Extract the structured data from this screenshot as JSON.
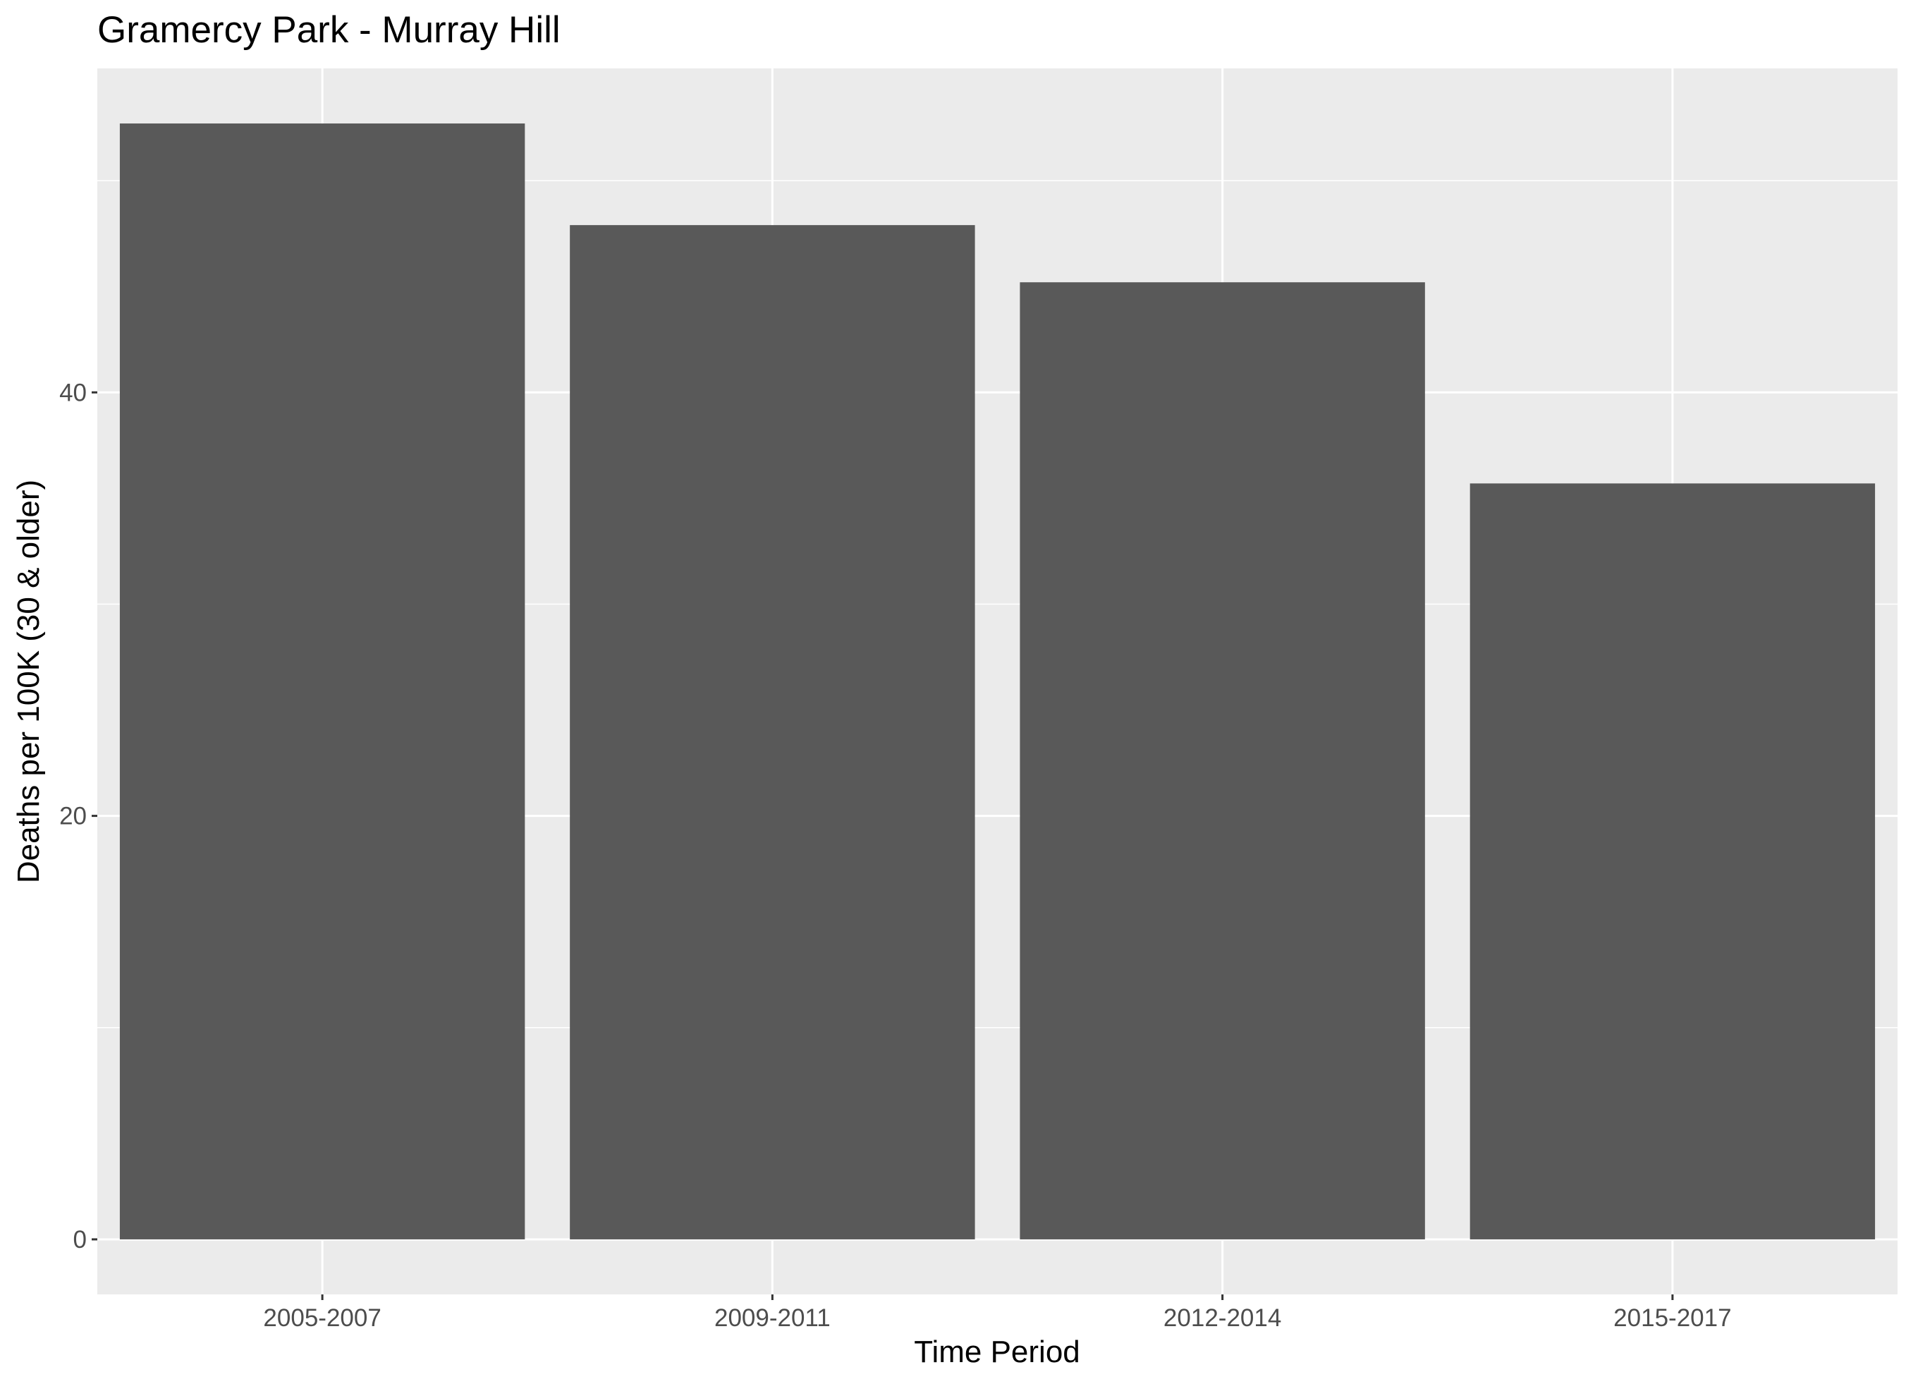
{
  "chart_data": {
    "type": "bar",
    "title": "Gramercy Park - Murray Hill",
    "xlabel": "Time Period",
    "ylabel": "Deaths per 100K (30 & older)",
    "categories": [
      "2005-2007",
      "2009-2011",
      "2012-2014",
      "2015-2017"
    ],
    "values": [
      52.7,
      47.9,
      45.2,
      35.7
    ],
    "ylim": [
      -2.6,
      55.3
    ],
    "yticks": [
      0,
      20,
      40
    ],
    "ytick_labels": [
      "0",
      "20",
      "40"
    ],
    "grid": true,
    "legend": "none",
    "colors": {
      "bar": "#595959",
      "panel": "#ebebeb",
      "grid": "#ffffff",
      "tick_text": "#4d4d4d"
    }
  }
}
